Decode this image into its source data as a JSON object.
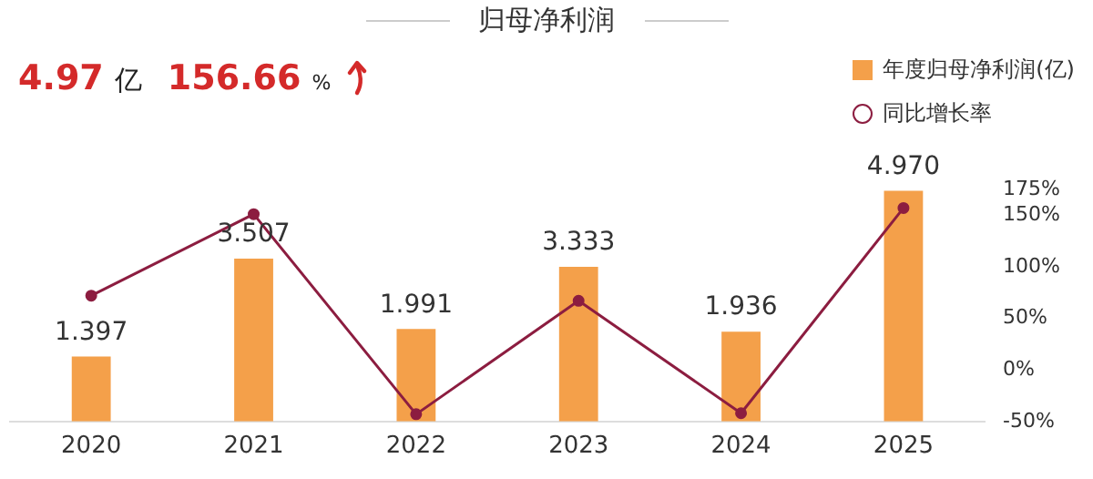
{
  "chart_data": {
    "type": "bar",
    "title": "归母净利润",
    "annotations": [
      "4.97",
      "亿",
      "156.66",
      "%"
    ],
    "categories": [
      "2020",
      "2021",
      "2022",
      "2023",
      "2024",
      "2025"
    ],
    "series": [
      {
        "name": "年度归母净利润(亿)",
        "color": "#f4a04a",
        "values": [
          1.397,
          3.507,
          1.991,
          3.333,
          1.936,
          4.97
        ],
        "value_labels": [
          "1.397",
          "3.507",
          "1.991",
          "3.333",
          "1.936",
          "4.970"
        ]
      },
      {
        "name": "同比增长率",
        "type": "line",
        "axis": "y2",
        "color": "#8c1d40",
        "marker": "circle",
        "values": [
          72,
          151,
          -43,
          67,
          -42,
          157
        ]
      }
    ],
    "y2lim": [
      -50,
      175
    ],
    "y2ticks": [
      {
        "value": -50,
        "label": "-50%"
      },
      {
        "value": 0,
        "label": "0%"
      },
      {
        "value": 50,
        "label": "50%"
      },
      {
        "value": 100,
        "label": "100%"
      },
      {
        "value": 150,
        "label": "150%"
      },
      {
        "value": 175,
        "label": "175%"
      }
    ],
    "grid": false,
    "legend": "top right"
  }
}
